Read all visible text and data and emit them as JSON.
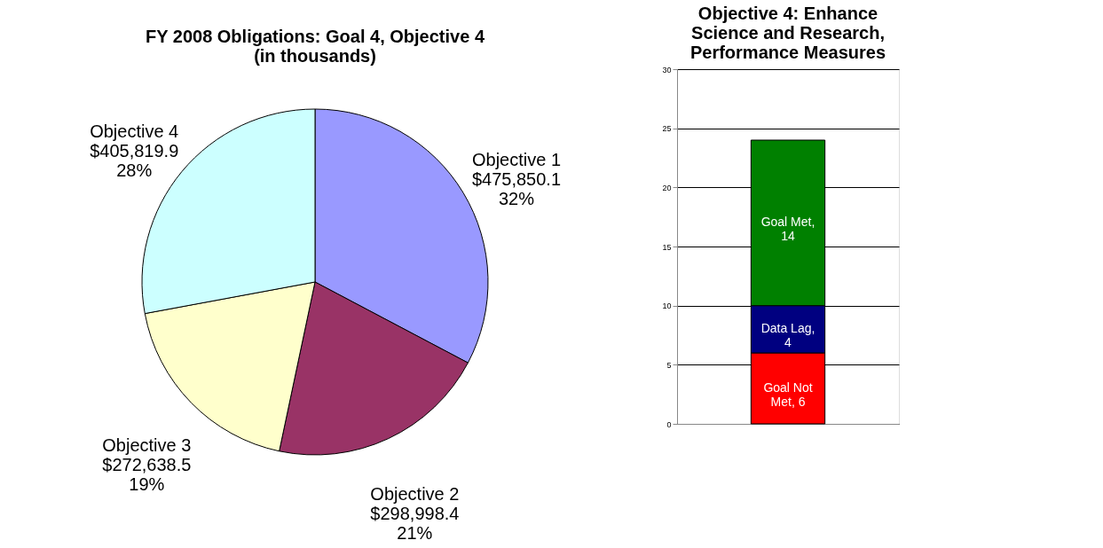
{
  "chart_data": [
    {
      "type": "pie",
      "title": [
        "FY 2008 Obligations: Goal 4, Objective 4",
        "(in thousands)"
      ],
      "categories": [
        "Objective 1",
        "Objective 2",
        "Objective 3",
        "Objective 4"
      ],
      "values": [
        475850.1,
        298998.4,
        272638.5,
        405819.9
      ],
      "value_labels": [
        "$475,850.1\n32%",
        "$298,998.4\n21%",
        "$272,638.5\n19%",
        "$405,819.9\n28%"
      ],
      "colors": [
        "#9999ff",
        "#993366",
        "#ffffcc",
        "#ccffff"
      ],
      "legend": false
    },
    {
      "type": "bar",
      "title": [
        "Objective 4: Enhance",
        "Science and Research,",
        "Performance Measures"
      ],
      "categories": [
        null
      ],
      "stacked": true,
      "series": [
        {
          "color": "#ff0000",
          "values": [
            6
          ],
          "value_labels": [
            "Goal Not Met, 6"
          ]
        },
        {
          "color": "#000080",
          "values": [
            4
          ],
          "value_labels": [
            "Data Lag, 4"
          ]
        },
        {
          "color": "#008000",
          "values": [
            14
          ],
          "value_labels": [
            "Goal Met, 14"
          ]
        }
      ],
      "ylim": [
        0,
        30
      ],
      "yticks": [
        0,
        5,
        10,
        15,
        20,
        25,
        30
      ],
      "grid": "y",
      "legend": false,
      "tick_labels": "y"
    }
  ]
}
